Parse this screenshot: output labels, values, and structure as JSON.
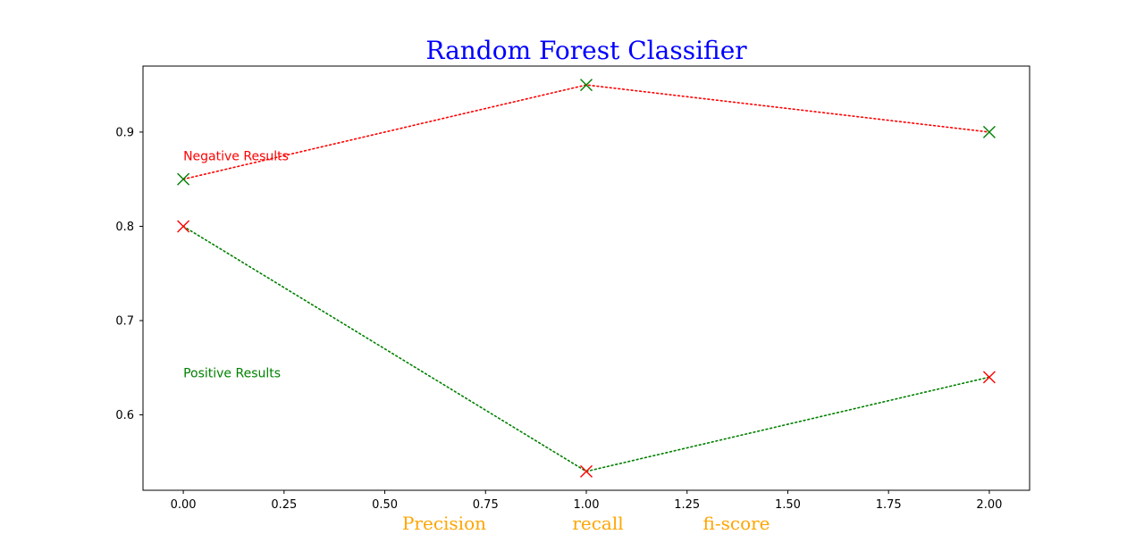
{
  "chart_data": {
    "type": "line",
    "title": "Random Forest Classifier",
    "title_color": "#0000ff",
    "xlabel_parts": [
      "Precision",
      "recall",
      "fi-score"
    ],
    "xlabel_color": "#ffa500",
    "xlim": [
      -0.1,
      2.1
    ],
    "ylim": [
      0.52,
      0.97
    ],
    "xticks": [
      "0.00",
      "0.25",
      "0.50",
      "0.75",
      "1.00",
      "1.25",
      "1.50",
      "1.75",
      "2.00"
    ],
    "yticks": [
      "0.6",
      "0.7",
      "0.8",
      "0.9"
    ],
    "grid": false,
    "series": [
      {
        "x": [
          0,
          1,
          2
        ],
        "values": [
          0.85,
          0.95,
          0.9
        ],
        "line_color": "#ff0000",
        "marker_color": "#008000",
        "line_style": "dotted",
        "marker": "x"
      },
      {
        "x": [
          0,
          1,
          2
        ],
        "values": [
          0.8,
          0.54,
          0.64
        ],
        "line_color": "#008000",
        "marker_color": "#ff0000",
        "line_style": "dotted",
        "marker": "x"
      }
    ],
    "annotations": [
      {
        "text": "Negative Results",
        "x": 0,
        "y": 0.87,
        "color": "#ff0000"
      },
      {
        "text": "Positive Results",
        "x": 0,
        "y": 0.64,
        "color": "#008000"
      }
    ]
  }
}
